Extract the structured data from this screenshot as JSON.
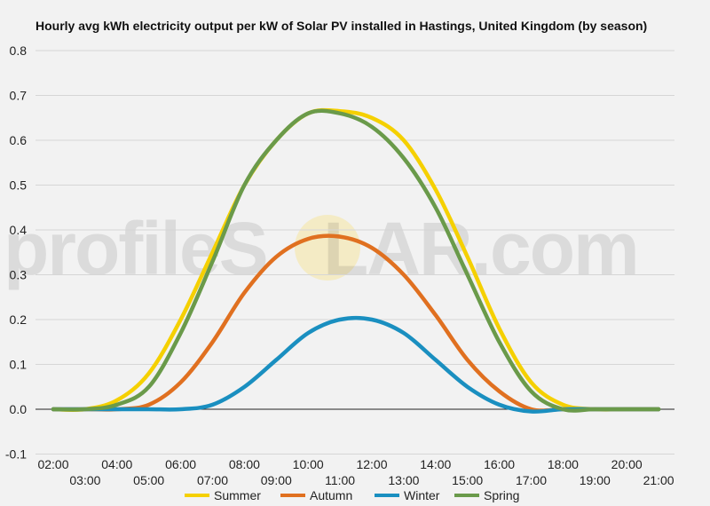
{
  "watermark": {
    "pre": "profileS",
    "o": "O",
    "post": "LAR.com"
  },
  "chart_data": {
    "type": "line",
    "title": "Hourly avg kWh electricity output per kW of Solar PV installed in Hastings, United Kingdom (by season)",
    "xlabel": "",
    "ylabel": "",
    "x": [
      "02:00",
      "03:00",
      "04:00",
      "05:00",
      "06:00",
      "07:00",
      "08:00",
      "09:00",
      "10:00",
      "11:00",
      "12:00",
      "13:00",
      "14:00",
      "15:00",
      "16:00",
      "17:00",
      "18:00",
      "19:00",
      "20:00",
      "21:00"
    ],
    "xticks_top": [
      "02:00",
      "04:00",
      "06:00",
      "08:00",
      "10:00",
      "12:00",
      "14:00",
      "16:00",
      "18:00",
      "20:00"
    ],
    "xticks_bottom": [
      "03:00",
      "05:00",
      "07:00",
      "09:00",
      "11:00",
      "13:00",
      "15:00",
      "17:00",
      "19:00",
      "21:00"
    ],
    "ylim": [
      -0.1,
      0.8
    ],
    "yticks": [
      "0.8",
      "0.7",
      "0.6",
      "0.5",
      "0.4",
      "0.3",
      "0.2",
      "0.1",
      "0.0",
      "-0.1"
    ],
    "grid": true,
    "legend_position": "bottom",
    "series": [
      {
        "name": "Summer",
        "color": "#f5d000",
        "values": [
          0,
          0,
          0.02,
          0.08,
          0.2,
          0.35,
          0.5,
          0.6,
          0.66,
          0.665,
          0.65,
          0.6,
          0.49,
          0.34,
          0.18,
          0.06,
          0.01,
          0,
          0,
          0
        ]
      },
      {
        "name": "Autumn",
        "color": "#e07020",
        "values": [
          0,
          0,
          0,
          0.01,
          0.06,
          0.15,
          0.26,
          0.34,
          0.38,
          0.385,
          0.36,
          0.3,
          0.21,
          0.11,
          0.04,
          0,
          0,
          0,
          0,
          0
        ]
      },
      {
        "name": "Winter",
        "color": "#1a8fc0",
        "values": [
          0,
          0,
          0,
          0,
          0,
          0.01,
          0.05,
          0.11,
          0.17,
          0.2,
          0.2,
          0.17,
          0.11,
          0.05,
          0.01,
          -0.005,
          0,
          0,
          0,
          0
        ]
      },
      {
        "name": "Spring",
        "color": "#6a9a4a",
        "values": [
          0,
          0,
          0.01,
          0.05,
          0.17,
          0.33,
          0.5,
          0.6,
          0.66,
          0.66,
          0.63,
          0.56,
          0.45,
          0.3,
          0.15,
          0.04,
          0,
          0,
          0,
          0
        ]
      }
    ]
  }
}
